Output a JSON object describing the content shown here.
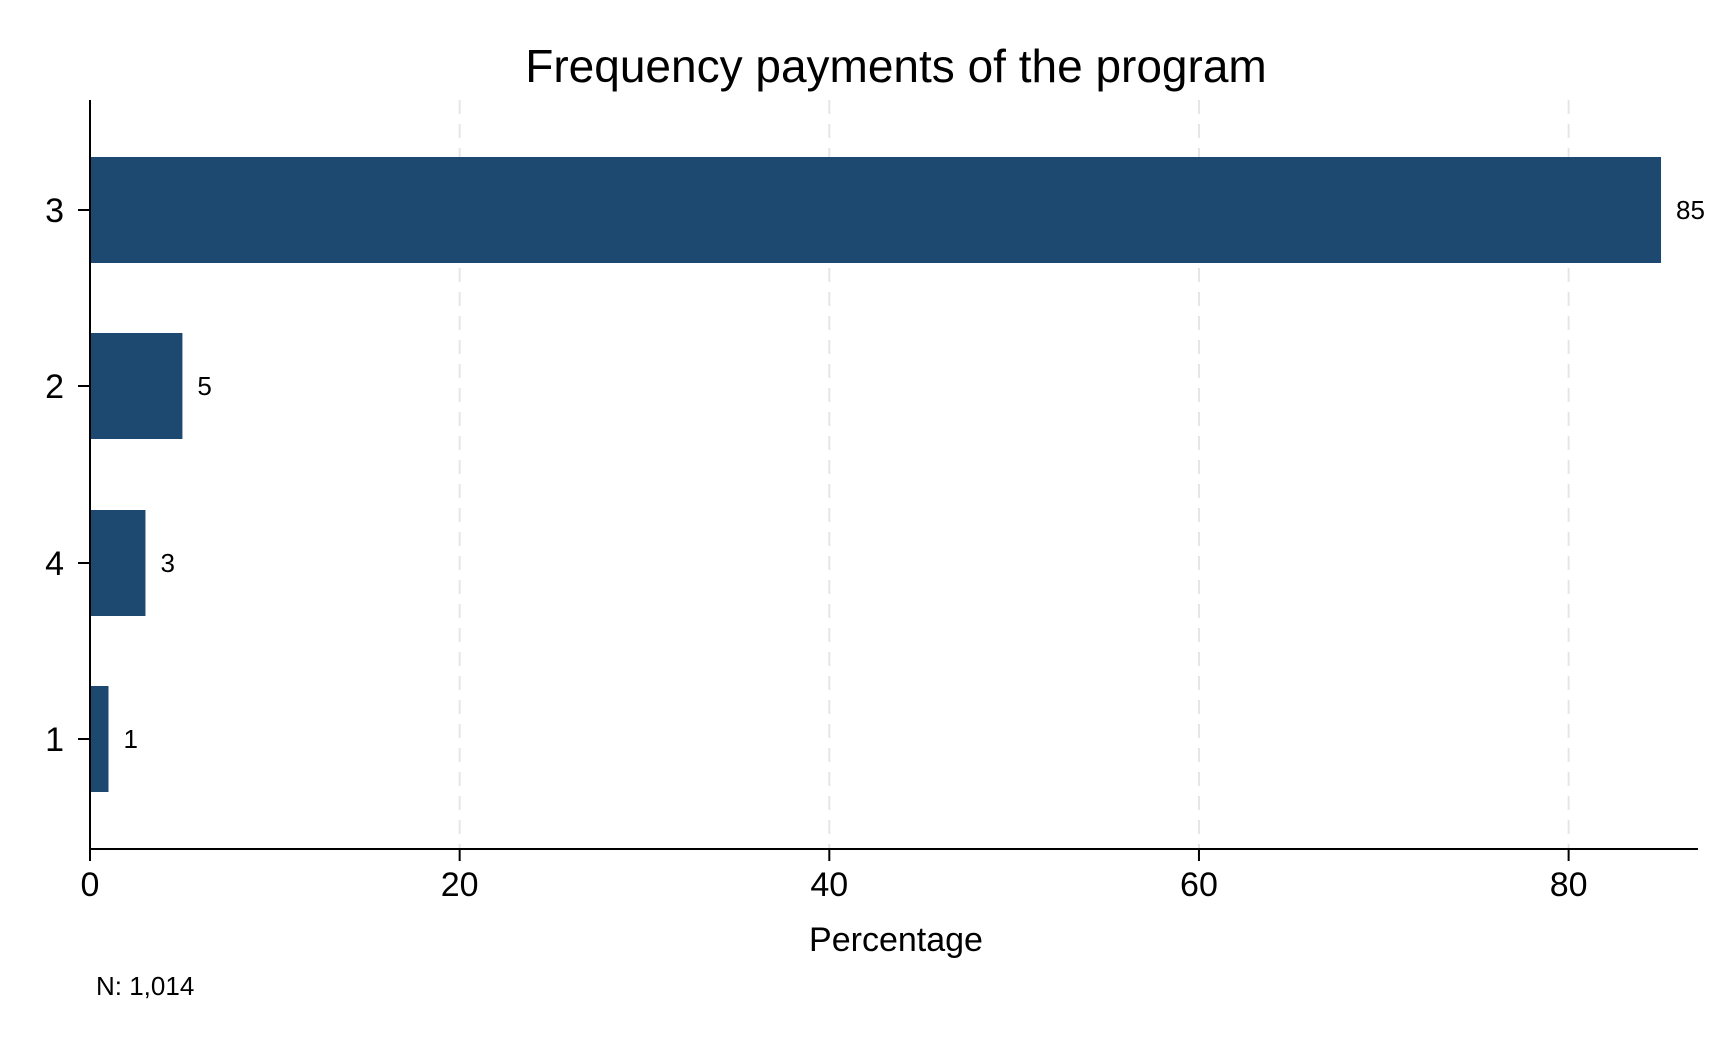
{
  "chart_data": {
    "type": "bar",
    "orientation": "horizontal",
    "title": "Frequency payments of the program",
    "xlabel": "Percentage",
    "ylabel": "",
    "categories": [
      "3",
      "2",
      "4",
      "1"
    ],
    "values": [
      85,
      5,
      3,
      1
    ],
    "data_labels": [
      "85",
      "5",
      "3",
      "1"
    ],
    "xlim": [
      0,
      87
    ],
    "xticks": [
      0,
      20,
      40,
      60,
      80
    ],
    "xtick_labels": [
      "0",
      "20",
      "40",
      "60",
      "80"
    ],
    "grid": true,
    "grid_style": "dashed vertical",
    "legend": "none",
    "note": "N: 1,014",
    "bar_color": "#1d4870",
    "grid_color": "#e6e6e6",
    "axis_color": "#000000"
  }
}
